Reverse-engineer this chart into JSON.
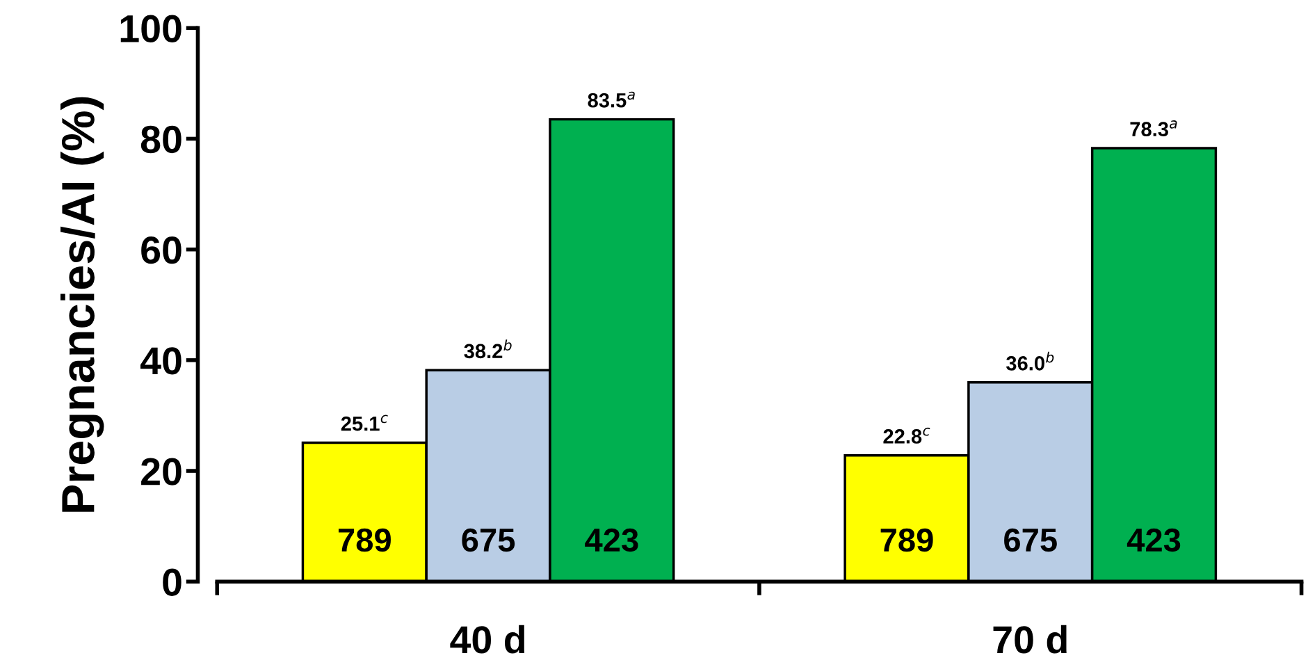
{
  "chart_data": {
    "type": "bar",
    "ylabel": "Pregnancies/AI (%)",
    "categories": [
      "40 d",
      "70 d"
    ],
    "series": [
      {
        "color": "#ffff00",
        "values": [
          25.1,
          22.8
        ],
        "value_labels": [
          "25.1$^{c}$",
          "22.8$^{c}$"
        ]
      },
      {
        "color": "#b9cde5",
        "values": [
          38.2,
          36.0
        ],
        "value_labels": [
          "38.2$^{b}$",
          "36.0$^{b}$"
        ]
      },
      {
        "color": "#00b050",
        "values": [
          83.5,
          78.3
        ],
        "value_labels": [
          "83.5$^{a}$",
          "78.3$^{a}$"
        ]
      }
    ],
    "annotations": [
      "789",
      "789",
      "675",
      "675",
      "423",
      "423"
    ],
    "ylim": [
      0,
      100
    ],
    "yticks": [
      0,
      20,
      40,
      60,
      80,
      100
    ],
    "grid": false,
    "legend": false
  }
}
